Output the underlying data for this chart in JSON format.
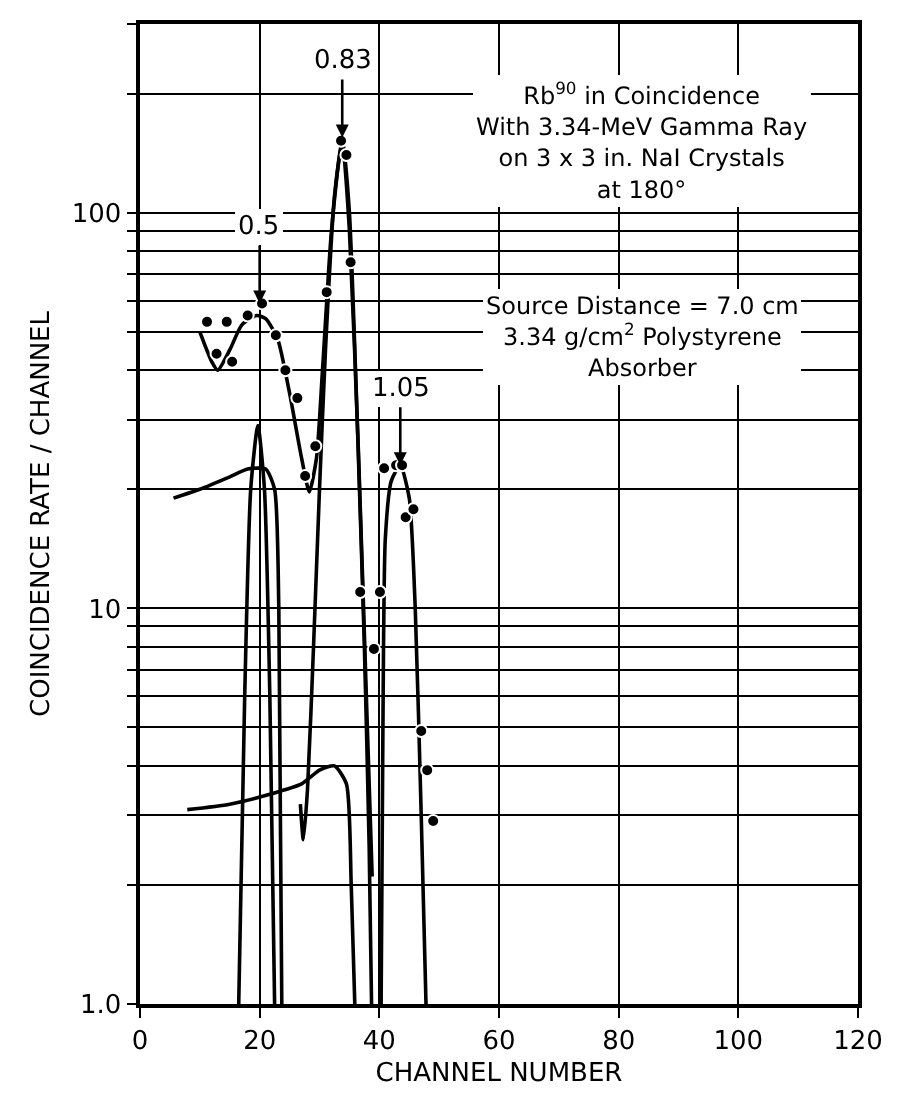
{
  "chart_data": {
    "type": "line",
    "xlabel": "CHANNEL NUMBER",
    "ylabel": "COINCIDENCE RATE / CHANNEL",
    "log": "y",
    "grid": true,
    "xlim": [
      0,
      120
    ],
    "xticks": [
      0,
      20,
      40,
      60,
      80,
      100,
      120
    ],
    "ylim": [
      1,
      300
    ],
    "yticks": [
      {
        "value": 1,
        "label": "1.0"
      },
      {
        "value": 2,
        "label": null
      },
      {
        "value": 3,
        "label": null
      },
      {
        "value": 4,
        "label": null
      },
      {
        "value": 5,
        "label": null
      },
      {
        "value": 6,
        "label": null
      },
      {
        "value": 7,
        "label": null
      },
      {
        "value": 8,
        "label": null
      },
      {
        "value": 9,
        "label": null
      },
      10,
      {
        "value": 20,
        "label": null
      },
      {
        "value": 30,
        "label": null
      },
      {
        "value": 40,
        "label": null
      },
      {
        "value": 50,
        "label": null
      },
      {
        "value": 60,
        "label": null
      },
      {
        "value": 70,
        "label": null
      },
      {
        "value": 80,
        "label": null
      },
      {
        "value": 90,
        "label": null
      },
      100,
      {
        "value": 200,
        "label": null
      },
      {
        "value": 300,
        "label": null
      }
    ],
    "series": [
      {
        "type": "scatter",
        "marker": "circle",
        "color": "#000000",
        "x": [
          11.2,
          12.8,
          14.5,
          15.4,
          18,
          20.4,
          22.7,
          24.3,
          26.3,
          27.6,
          29.3,
          31.2,
          33.6,
          34.5,
          35.2,
          36.8,
          39.1,
          40.1,
          40.8,
          42.8,
          43.8,
          44.4,
          45.7,
          47,
          48,
          49
        ],
        "values": [
          53,
          44,
          53,
          42,
          55,
          59,
          49,
          40,
          34,
          21.6,
          25.7,
          63,
          152,
          140,
          75,
          11,
          7.9,
          11,
          22.6,
          23,
          23,
          17,
          17.8,
          4.9,
          3.9,
          2.9
        ]
      },
      {
        "marker": "none",
        "color": "#000000",
        "x": [
          10,
          12,
          13,
          15,
          17,
          19.5,
          21,
          23,
          25,
          27,
          28.3,
          29.5,
          30.5,
          32,
          33.8,
          35,
          36.3,
          37.5,
          38.3,
          38.7
        ],
        "values": [
          50,
          42,
          40,
          45,
          52,
          55,
          54,
          48,
          35,
          24,
          19.7,
          24,
          40,
          90,
          155,
          100,
          30,
          8,
          2.5,
          1.0
        ]
      },
      {
        "marker": "none",
        "color": "#000000",
        "x": [
          40.3,
          40.6,
          41,
          42,
          43.5,
          45,
          46,
          47,
          47.8
        ],
        "values": [
          1.0,
          5,
          15,
          21,
          23,
          19,
          10,
          3,
          1.0
        ]
      },
      {
        "marker": "none",
        "color": "#000000",
        "x": [
          5.6,
          10,
          15,
          18,
          21,
          22.5,
          23.2,
          23.7
        ],
        "values": [
          19,
          20,
          21.5,
          22.5,
          22.5,
          20,
          10,
          1.0
        ]
      },
      {
        "marker": "none",
        "color": "#000000",
        "x": [
          16.5,
          17.5,
          18.5,
          19.7,
          20.8,
          21.7,
          22.5
        ],
        "values": [
          1.0,
          6,
          20,
          29,
          20,
          6,
          1.0
        ]
      },
      {
        "marker": "none",
        "color": "#000000",
        "x": [
          26.8,
          27.3,
          28,
          29,
          30,
          31,
          32.5,
          33.8,
          35,
          36.5,
          38,
          38.8
        ],
        "values": [
          3.2,
          2.6,
          3.5,
          8,
          20,
          45,
          110,
          150,
          90,
          25,
          5,
          2.1
        ]
      },
      {
        "marker": "none",
        "color": "#000000",
        "x": [
          7.9,
          15,
          22,
          27,
          30,
          32.5,
          34.5,
          35.3,
          35.9
        ],
        "values": [
          3.1,
          3.2,
          3.4,
          3.6,
          3.9,
          4.0,
          3.6,
          2.0,
          1.0
        ]
      }
    ],
    "annotations": [
      {
        "text": "0.5",
        "x": 20,
        "y": 59
      },
      {
        "text": "0.83",
        "x": 33.8,
        "y": 155
      },
      {
        "text": "1.05",
        "x": 43.5,
        "y": 23
      },
      "Rb$^{90}$ in Coincidence\nWith 3.34-MeV Gamma Ray\non 3 x 3 in. NaI Crystals\nat 180°",
      "Source Distance = 7.0 cm\n3.34 g/cm$^{2}$ Polystyrene\nAbsorber"
    ]
  }
}
